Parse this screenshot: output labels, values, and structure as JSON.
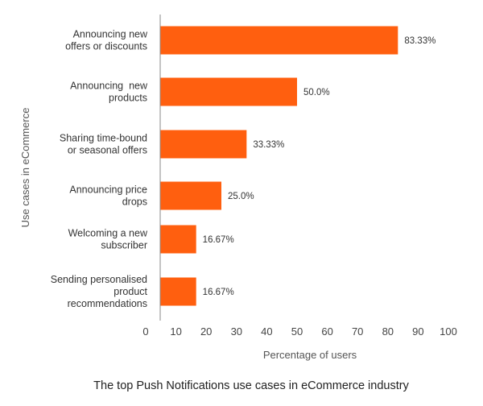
{
  "chart_data": {
    "type": "bar",
    "orientation": "horizontal",
    "title": "The top Push Notifications use cases in eCommerce industry",
    "xlabel": "Percentage of users",
    "ylabel": "Use cases in eCommerce",
    "xlim": [
      0,
      100
    ],
    "xticks": [
      0,
      10,
      20,
      30,
      40,
      50,
      60,
      70,
      80,
      90,
      100
    ],
    "categories": [
      [
        "Announcing new",
        "offers or discounts"
      ],
      [
        "Announcing  new",
        "products"
      ],
      [
        "Sharing time-bound",
        "or seasonal offers"
      ],
      [
        "Announcing price",
        "drops"
      ],
      [
        "Welcoming a new",
        "subscriber"
      ],
      [
        "Sending personalised",
        "product",
        "recommendations"
      ]
    ],
    "values": [
      83.33,
      50.0,
      33.33,
      25.0,
      16.67,
      16.67
    ],
    "value_labels": [
      "83.33%",
      "50.0%",
      "33.33%",
      "25.0%",
      "16.67%",
      "16.67%"
    ],
    "bar_color": "#ff5f0f",
    "grid": false,
    "legend": "none"
  }
}
